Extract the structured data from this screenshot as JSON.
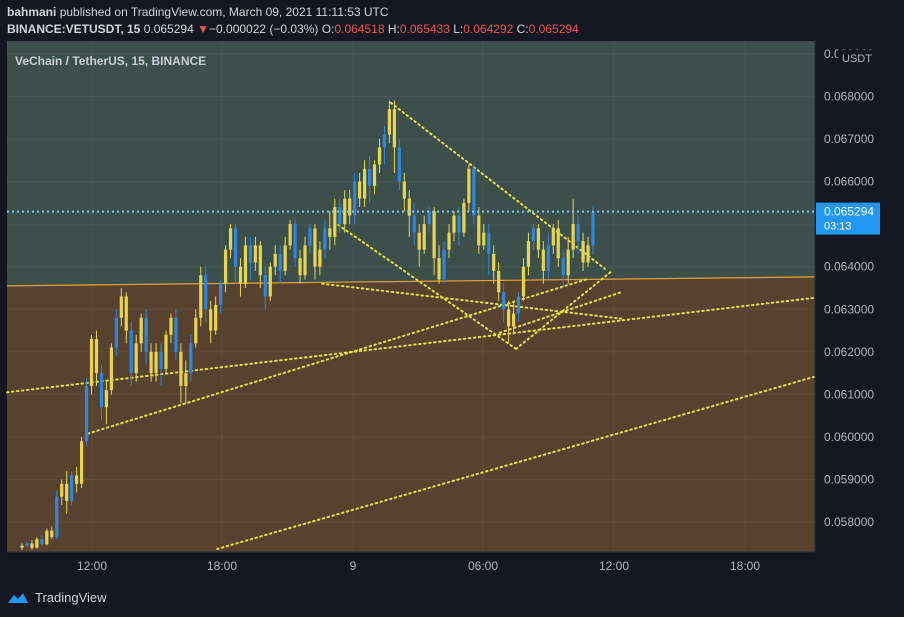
{
  "header": {
    "author": "bahmani",
    "published_text": "published on TradingView.com, March 09, 2021 11:11:53 UTC",
    "symbol": "BINANCE:VETUSDT, 15",
    "last": "0.065294",
    "change_arrow": "▼",
    "change": "−0.000022 (−0.03%)",
    "o_label": "O:",
    "o_value": "0.064518",
    "h_label": "H:",
    "h_value": "0.065433",
    "l_label": "L:",
    "l_value": "0.064292",
    "c_label": "C:",
    "c_value": "0.065294"
  },
  "footer": {
    "brand": "TradingView",
    "logo_icon": "tradingview-logo-icon"
  },
  "colors": {
    "bg": "#131722",
    "zone_top": "#3c4f4a",
    "zone_bottom": "#57422f",
    "boundary": "#f0a030",
    "candle": "#e8d44d",
    "candle_alt": "#2e86de",
    "trend": "#e8e23a",
    "price_line": "#7ec8ee",
    "price_tag": "#2196f3"
  },
  "chart_data": {
    "type": "candlestick",
    "title": "VeChain / TetherUS, 15, BINANCE",
    "price_axis_unit": "USDT",
    "y_ticks": [
      "0.058000",
      "0.059000",
      "0.060000",
      "0.061000",
      "0.062000",
      "0.063000",
      "0.064000",
      "0.065000",
      "0.066000",
      "0.067000",
      "0.068000",
      "0.069000"
    ],
    "y_range": [
      0.0573,
      0.0693
    ],
    "x_labels": [
      "12:00",
      "18:00",
      "9",
      "06:00",
      "12:00",
      "18:00"
    ],
    "current_price": "0.065294",
    "countdown": "03:13",
    "zone_boundary_price_at_left": 0.06355,
    "zone_boundary_price_at_right": 0.06376,
    "candles": [
      [
        0.0574,
        0.05745,
        0.05735,
        0.0575
      ],
      [
        0.05745,
        0.0575,
        0.0574,
        0.05755
      ],
      [
        0.0575,
        0.0574,
        0.05735,
        0.05758
      ],
      [
        0.0574,
        0.0576,
        0.05738,
        0.05765
      ],
      [
        0.0576,
        0.05748,
        0.05745,
        0.0577
      ],
      [
        0.05748,
        0.0578,
        0.05745,
        0.05785
      ],
      [
        0.0578,
        0.05765,
        0.0576,
        0.0579
      ],
      [
        0.05765,
        0.0586,
        0.0576,
        0.05875
      ],
      [
        0.0586,
        0.0589,
        0.0584,
        0.059
      ],
      [
        0.0589,
        0.0585,
        0.0582,
        0.0592
      ],
      [
        0.0585,
        0.0591,
        0.0584,
        0.0592
      ],
      [
        0.0591,
        0.0589,
        0.0587,
        0.0593
      ],
      [
        0.0589,
        0.0599,
        0.0588,
        0.06
      ],
      [
        0.0599,
        0.0612,
        0.0598,
        0.0614
      ],
      [
        0.0612,
        0.0623,
        0.061,
        0.0624
      ],
      [
        0.0623,
        0.0615,
        0.0612,
        0.0625
      ],
      [
        0.0615,
        0.0607,
        0.0604,
        0.0617
      ],
      [
        0.0607,
        0.0611,
        0.0603,
        0.0613
      ],
      [
        0.0611,
        0.0621,
        0.061,
        0.0622
      ],
      [
        0.0621,
        0.0628,
        0.0619,
        0.063
      ],
      [
        0.0628,
        0.0633,
        0.0626,
        0.0635
      ],
      [
        0.0633,
        0.0625,
        0.0622,
        0.0634
      ],
      [
        0.0625,
        0.0615,
        0.0612,
        0.0627
      ],
      [
        0.0615,
        0.0622,
        0.0613,
        0.0624
      ],
      [
        0.0622,
        0.0628,
        0.062,
        0.0629
      ],
      [
        0.0628,
        0.062,
        0.0617,
        0.063
      ],
      [
        0.062,
        0.0615,
        0.0613,
        0.0622
      ],
      [
        0.0615,
        0.062,
        0.0613,
        0.0622
      ],
      [
        0.062,
        0.0616,
        0.0612,
        0.0622
      ],
      [
        0.0616,
        0.0624,
        0.0615,
        0.0625
      ],
      [
        0.0624,
        0.0628,
        0.0622,
        0.0629
      ],
      [
        0.0628,
        0.062,
        0.0618,
        0.063
      ],
      [
        0.062,
        0.0612,
        0.0608,
        0.0622
      ],
      [
        0.0612,
        0.0615,
        0.0608,
        0.0618
      ],
      [
        0.0615,
        0.0622,
        0.0613,
        0.0624
      ],
      [
        0.0622,
        0.0628,
        0.0621,
        0.063
      ],
      [
        0.0628,
        0.0638,
        0.0626,
        0.064
      ],
      [
        0.0638,
        0.063,
        0.0627,
        0.064
      ],
      [
        0.063,
        0.0625,
        0.0622,
        0.0632
      ],
      [
        0.0625,
        0.0631,
        0.0624,
        0.0633
      ],
      [
        0.0631,
        0.0636,
        0.0629,
        0.0637
      ],
      [
        0.0636,
        0.0644,
        0.0634,
        0.0645
      ],
      [
        0.0644,
        0.0649,
        0.0642,
        0.065
      ],
      [
        0.0649,
        0.064,
        0.0636,
        0.065
      ],
      [
        0.064,
        0.0636,
        0.0633,
        0.0642
      ],
      [
        0.0636,
        0.0645,
        0.0635,
        0.0647
      ],
      [
        0.0645,
        0.0641,
        0.0637,
        0.0647
      ],
      [
        0.0641,
        0.0645,
        0.0639,
        0.0647
      ],
      [
        0.0645,
        0.0638,
        0.0635,
        0.0646
      ],
      [
        0.0638,
        0.0633,
        0.063,
        0.064
      ],
      [
        0.0633,
        0.064,
        0.0632,
        0.0641
      ],
      [
        0.064,
        0.0643,
        0.0638,
        0.0645
      ],
      [
        0.0643,
        0.0639,
        0.0636,
        0.0645
      ],
      [
        0.0639,
        0.0645,
        0.0638,
        0.0647
      ],
      [
        0.0645,
        0.065,
        0.0644,
        0.0651
      ],
      [
        0.065,
        0.0642,
        0.064,
        0.0651
      ],
      [
        0.0642,
        0.0638,
        0.0636,
        0.0644
      ],
      [
        0.0638,
        0.0645,
        0.0637,
        0.0647
      ],
      [
        0.0645,
        0.0649,
        0.0643,
        0.065
      ],
      [
        0.0649,
        0.064,
        0.0637,
        0.065
      ],
      [
        0.064,
        0.0644,
        0.0638,
        0.0646
      ],
      [
        0.0644,
        0.0649,
        0.0642,
        0.0651
      ],
      [
        0.0649,
        0.0647,
        0.0644,
        0.0653
      ],
      [
        0.0647,
        0.0654,
        0.0645,
        0.0656
      ],
      [
        0.0654,
        0.065,
        0.0648,
        0.0656
      ],
      [
        0.065,
        0.0656,
        0.0648,
        0.0658
      ],
      [
        0.0656,
        0.0652,
        0.065,
        0.0658
      ],
      [
        0.0652,
        0.066,
        0.065,
        0.0662
      ],
      [
        0.066,
        0.0656,
        0.0654,
        0.0662
      ],
      [
        0.0656,
        0.0663,
        0.0654,
        0.0665
      ],
      [
        0.0663,
        0.0659,
        0.0655,
        0.0666
      ],
      [
        0.0659,
        0.0664,
        0.0657,
        0.0665
      ],
      [
        0.0664,
        0.0668,
        0.0662,
        0.067
      ],
      [
        0.0668,
        0.0671,
        0.0664,
        0.0673
      ],
      [
        0.0671,
        0.0677,
        0.0669,
        0.0679
      ],
      [
        0.0677,
        0.0668,
        0.0662,
        0.0679
      ],
      [
        0.0668,
        0.066,
        0.0658,
        0.067
      ],
      [
        0.066,
        0.0656,
        0.0653,
        0.0662
      ],
      [
        0.0656,
        0.0652,
        0.0647,
        0.0658
      ],
      [
        0.0652,
        0.0648,
        0.0645,
        0.0655
      ],
      [
        0.0648,
        0.0644,
        0.064,
        0.065
      ],
      [
        0.0644,
        0.065,
        0.0643,
        0.0652
      ],
      [
        0.065,
        0.0653,
        0.0648,
        0.0654
      ],
      [
        0.0653,
        0.0642,
        0.0638,
        0.0654
      ],
      [
        0.0642,
        0.0637,
        0.0636,
        0.0645
      ],
      [
        0.0637,
        0.0644,
        0.0636,
        0.0646
      ],
      [
        0.0644,
        0.0648,
        0.0642,
        0.065
      ],
      [
        0.0648,
        0.0652,
        0.0646,
        0.0653
      ],
      [
        0.0652,
        0.0648,
        0.0645,
        0.0654
      ],
      [
        0.0648,
        0.0655,
        0.0647,
        0.0656
      ],
      [
        0.0655,
        0.0663,
        0.0653,
        0.0664
      ],
      [
        0.0663,
        0.0652,
        0.065,
        0.0664
      ],
      [
        0.0652,
        0.0645,
        0.0643,
        0.0654
      ],
      [
        0.0645,
        0.0648,
        0.0644,
        0.065
      ],
      [
        0.0648,
        0.0643,
        0.0638,
        0.065
      ],
      [
        0.0643,
        0.0639,
        0.0636,
        0.0645
      ],
      [
        0.0639,
        0.0634,
        0.0632,
        0.0641
      ],
      [
        0.0634,
        0.063,
        0.0627,
        0.0636
      ],
      [
        0.063,
        0.0626,
        0.0622,
        0.0632
      ],
      [
        0.0626,
        0.0629,
        0.0624,
        0.0632
      ],
      [
        0.0629,
        0.0633,
        0.0627,
        0.0634
      ],
      [
        0.0633,
        0.064,
        0.0632,
        0.0642
      ],
      [
        0.064,
        0.0646,
        0.0638,
        0.0648
      ],
      [
        0.0646,
        0.0649,
        0.0644,
        0.065
      ],
      [
        0.0649,
        0.0644,
        0.0642,
        0.065
      ],
      [
        0.0644,
        0.0639,
        0.0636,
        0.0646
      ],
      [
        0.0639,
        0.0645,
        0.0637,
        0.0648
      ],
      [
        0.0645,
        0.0649,
        0.0643,
        0.065
      ],
      [
        0.0649,
        0.0642,
        0.064,
        0.0651
      ],
      [
        0.0642,
        0.0638,
        0.0635,
        0.0644
      ],
      [
        0.0638,
        0.0644,
        0.0636,
        0.0647
      ],
      [
        0.0644,
        0.065,
        0.0642,
        0.0656
      ],
      [
        0.065,
        0.0646,
        0.0643,
        0.0652
      ],
      [
        0.0646,
        0.0641,
        0.0639,
        0.0648
      ],
      [
        0.0641,
        0.0645,
        0.064,
        0.0647
      ],
      [
        0.0645,
        0.06529,
        0.06429,
        0.06543
      ]
    ],
    "trend_lines": [
      {
        "x0": 0,
        "y0": 0.06105,
        "x1": 1.0,
        "y1": 0.06327
      },
      {
        "x0": 0.1,
        "y0": 0.06008,
        "x1": 0.72,
        "y1": 0.06372
      },
      {
        "x0": 0.26,
        "y0": 0.05737,
        "x1": 1.0,
        "y1": 0.06142
      },
      {
        "x0": 0.475,
        "y0": 0.06785,
        "x1": 0.74,
        "y1": 0.06395
      },
      {
        "x0": 0.41,
        "y0": 0.06498,
        "x1": 0.63,
        "y1": 0.06207
      },
      {
        "x0": 0.39,
        "y0": 0.0636,
        "x1": 0.76,
        "y1": 0.06278
      },
      {
        "x0": 0.63,
        "y0": 0.06207,
        "x1": 0.75,
        "y1": 0.06392
      },
      {
        "x0": 0.61,
        "y0": 0.06245,
        "x1": 0.76,
        "y1": 0.0634
      }
    ]
  }
}
